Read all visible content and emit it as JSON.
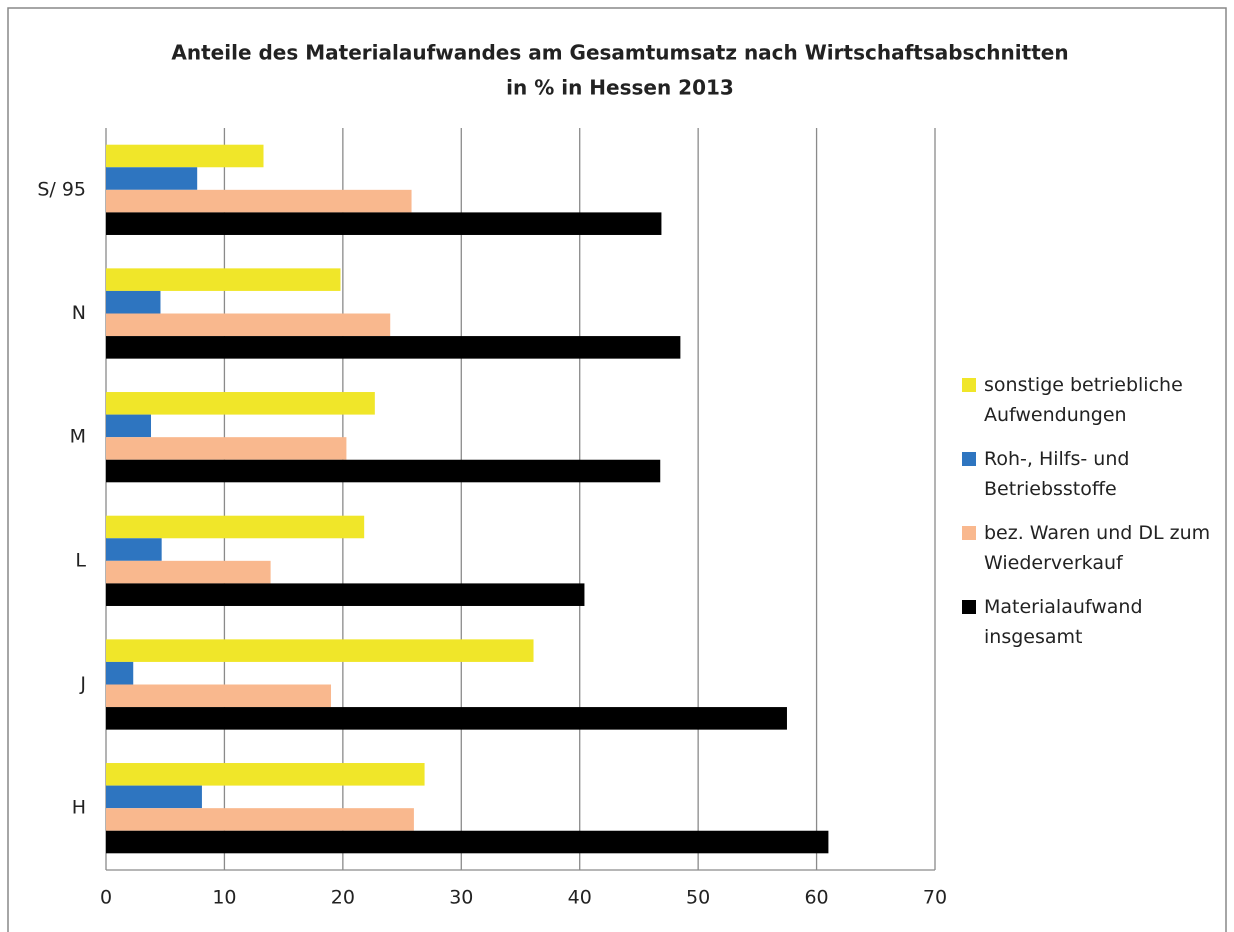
{
  "chart_data": {
    "type": "bar",
    "orientation": "horizontal",
    "title": [
      "Anteile des Materialaufwandes am Gesamtumsatz nach Wirtschaftsabschnitten",
      "in % in Hessen 2013"
    ],
    "categories": [
      "H",
      "J",
      "L",
      "M",
      "N",
      "S/ 95"
    ],
    "series": [
      {
        "name": "sonstige betriebliche Aufwendungen",
        "color": "#f0e629",
        "values": [
          26.9,
          36.1,
          21.8,
          22.7,
          19.8,
          13.3
        ]
      },
      {
        "name": "Roh-, Hilfs- und Betriebsstoffe",
        "color": "#2e75c0",
        "values": [
          8.1,
          2.3,
          4.7,
          3.8,
          4.6,
          7.7
        ]
      },
      {
        "name": "bez. Waren und DL zum Wiederverkauf",
        "color": "#f9b88e",
        "values": [
          26.0,
          19.0,
          13.9,
          20.3,
          24.0,
          25.8
        ]
      },
      {
        "name": "Materialaufwand insgesamt",
        "color": "#000000",
        "values": [
          61.0,
          57.5,
          40.4,
          46.8,
          48.5,
          46.9
        ]
      }
    ],
    "xlim": [
      0,
      70
    ],
    "xticks": [
      0,
      10,
      20,
      30,
      40,
      50,
      60,
      70
    ],
    "grid": true,
    "legend": "right"
  }
}
